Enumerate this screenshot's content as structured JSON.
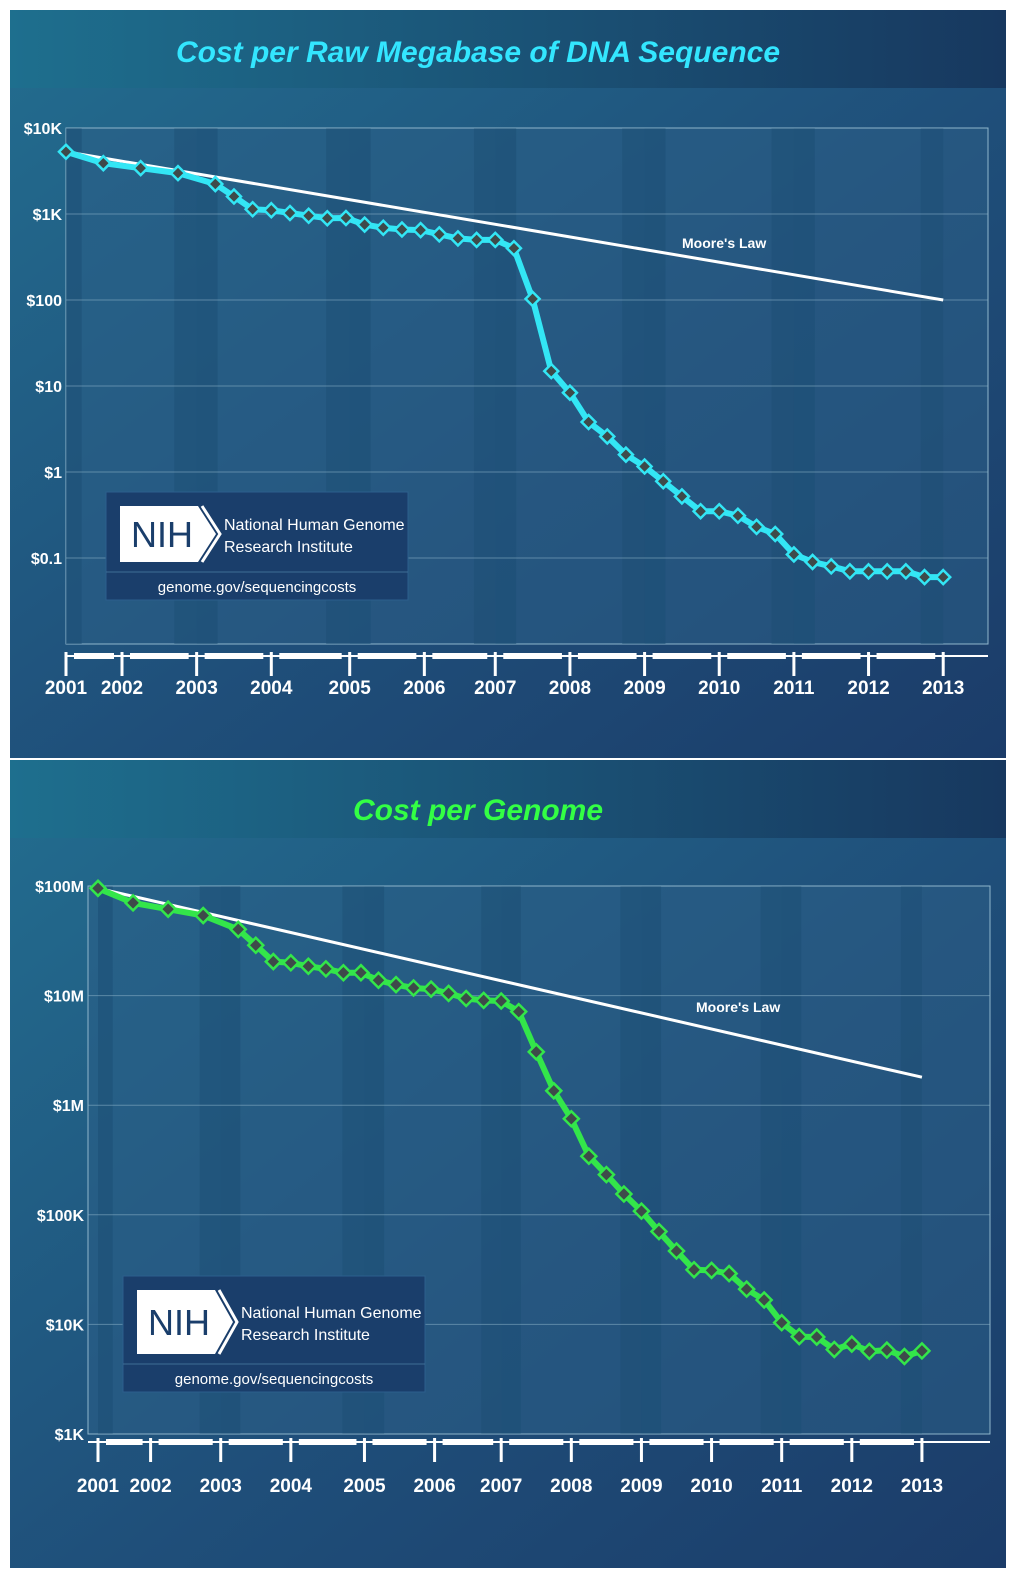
{
  "chart_data": [
    {
      "type": "line",
      "title": "Cost per Raw Megabase of DNA Sequence",
      "title_color": "#33e6ff",
      "series_color": "#33e6f5",
      "yscale": "log",
      "ylim": [
        0.01,
        10000
      ],
      "y_ticks": [
        {
          "value": 10000,
          "label": "$10K"
        },
        {
          "value": 1000,
          "label": "$1K"
        },
        {
          "value": 100,
          "label": "$100"
        },
        {
          "value": 10,
          "label": "$10"
        },
        {
          "value": 1,
          "label": "$1"
        },
        {
          "value": 0.1,
          "label": "$0.1"
        }
      ],
      "xlim": [
        2001.0,
        2013.35
      ],
      "x_ticks": [
        {
          "value": 2001.0,
          "label": "2001"
        },
        {
          "value": 2001.75,
          "label": "2002"
        },
        {
          "value": 2002.75,
          "label": "2003"
        },
        {
          "value": 2003.75,
          "label": "2004"
        },
        {
          "value": 2004.8,
          "label": "2005"
        },
        {
          "value": 2005.8,
          "label": "2006"
        },
        {
          "value": 2006.75,
          "label": "2007"
        },
        {
          "value": 2007.75,
          "label": "2008"
        },
        {
          "value": 2008.75,
          "label": "2009"
        },
        {
          "value": 2009.75,
          "label": "2010"
        },
        {
          "value": 2010.75,
          "label": "2011"
        },
        {
          "value": 2011.75,
          "label": "2012"
        },
        {
          "value": 2012.75,
          "label": "2013"
        }
      ],
      "series": [
        {
          "name": "Cost per Raw Megabase",
          "x": [
            2001.0,
            2001.5,
            2002.0,
            2002.5,
            2003.0,
            2003.25,
            2003.5,
            2003.75,
            2004.0,
            2004.25,
            2004.5,
            2004.75,
            2005.0,
            2005.25,
            2005.5,
            2005.75,
            2006.0,
            2006.25,
            2006.5,
            2006.75,
            2007.0,
            2007.25,
            2007.5,
            2007.75,
            2008.0,
            2008.25,
            2008.5,
            2008.75,
            2009.0,
            2009.25,
            2009.5,
            2009.75,
            2010.0,
            2010.25,
            2010.5,
            2010.75,
            2011.0,
            2011.25,
            2011.5,
            2011.75,
            2012.0,
            2012.25,
            2012.5,
            2012.75
          ],
          "values": [
            5292,
            3898,
            3413,
            2987,
            2230,
            1598,
            1135,
            1107,
            1028,
            955,
            893,
            899,
            753,
            692,
            660,
            650,
            580,
            520,
            500,
            500,
            400,
            103,
            14.9,
            8.36,
            3.81,
            2.59,
            1.59,
            1.16,
            0.78,
            0.52,
            0.35,
            0.35,
            0.31,
            0.23,
            0.19,
            0.11,
            0.09,
            0.08,
            0.07,
            0.07,
            0.07,
            0.07,
            0.06,
            0.06
          ]
        },
        {
          "name": "Moore's Law",
          "x": [
            2001.0,
            2012.75
          ],
          "values": [
            5292,
            100
          ]
        }
      ],
      "annotations": [
        {
          "text": "Moore's Law"
        }
      ]
    },
    {
      "type": "line",
      "title": "Cost per Genome",
      "title_color": "#33ff44",
      "series_color": "#33e64a",
      "yscale": "log",
      "ylim": [
        1000,
        100000000
      ],
      "y_ticks": [
        {
          "value": 100000000,
          "label": "$100M"
        },
        {
          "value": 10000000,
          "label": "$10M"
        },
        {
          "value": 1000000,
          "label": "$1M"
        },
        {
          "value": 100000,
          "label": "$100K"
        },
        {
          "value": 10000,
          "label": "$10K"
        },
        {
          "value": 1000,
          "label": "$1K"
        }
      ],
      "xlim": [
        2001.0,
        2013.35
      ],
      "x_ticks": [
        {
          "value": 2001.0,
          "label": "2001"
        },
        {
          "value": 2001.75,
          "label": "2002"
        },
        {
          "value": 2002.75,
          "label": "2003"
        },
        {
          "value": 2003.75,
          "label": "2004"
        },
        {
          "value": 2004.8,
          "label": "2005"
        },
        {
          "value": 2005.8,
          "label": "2006"
        },
        {
          "value": 2006.75,
          "label": "2007"
        },
        {
          "value": 2007.75,
          "label": "2008"
        },
        {
          "value": 2008.75,
          "label": "2009"
        },
        {
          "value": 2009.75,
          "label": "2010"
        },
        {
          "value": 2010.75,
          "label": "2011"
        },
        {
          "value": 2011.75,
          "label": "2012"
        },
        {
          "value": 2012.75,
          "label": "2013"
        }
      ],
      "series": [
        {
          "name": "Cost per Genome",
          "x": [
            2001.0,
            2001.5,
            2002.0,
            2002.5,
            2003.0,
            2003.25,
            2003.5,
            2003.75,
            2004.0,
            2004.25,
            2004.5,
            2004.75,
            2005.0,
            2005.25,
            2005.5,
            2005.75,
            2006.0,
            2006.25,
            2006.5,
            2006.75,
            2007.0,
            2007.25,
            2007.5,
            2007.75,
            2008.0,
            2008.25,
            2008.5,
            2008.75,
            2009.0,
            2009.25,
            2009.5,
            2009.75,
            2010.0,
            2010.25,
            2010.5,
            2010.75,
            2011.0,
            2011.25,
            2011.5,
            2011.75,
            2012.0,
            2012.25,
            2012.5,
            2012.75
          ],
          "values": [
            95263072,
            70175437,
            61448422,
            53751684,
            40157554,
            28780376,
            20442576,
            19934346,
            18519312,
            17534040,
            16159972,
            16180224,
            13801124,
            12585659,
            11732535,
            11455315,
            10474556,
            9408739,
            9047002,
            8927342,
            7147571,
            3063820,
            1352982,
            752080,
            342502,
            232735,
            154714,
            108065,
            70333,
            46774,
            31512,
            31125,
            29092,
            20963,
            16712,
            10376,
            7743,
            7666,
            5901,
            6618,
            5671,
            5826,
            5096,
            5731
          ]
        },
        {
          "name": "Moore's Law",
          "x": [
            2001.0,
            2012.75
          ],
          "values": [
            95263072,
            1800000
          ]
        }
      ],
      "annotations": [
        {
          "text": "Moore's Law"
        }
      ]
    }
  ],
  "logo": {
    "mark": "NIH",
    "line1": "National Human Genome",
    "line2": "Research Institute",
    "url": "genome.gov/sequencingcosts"
  }
}
